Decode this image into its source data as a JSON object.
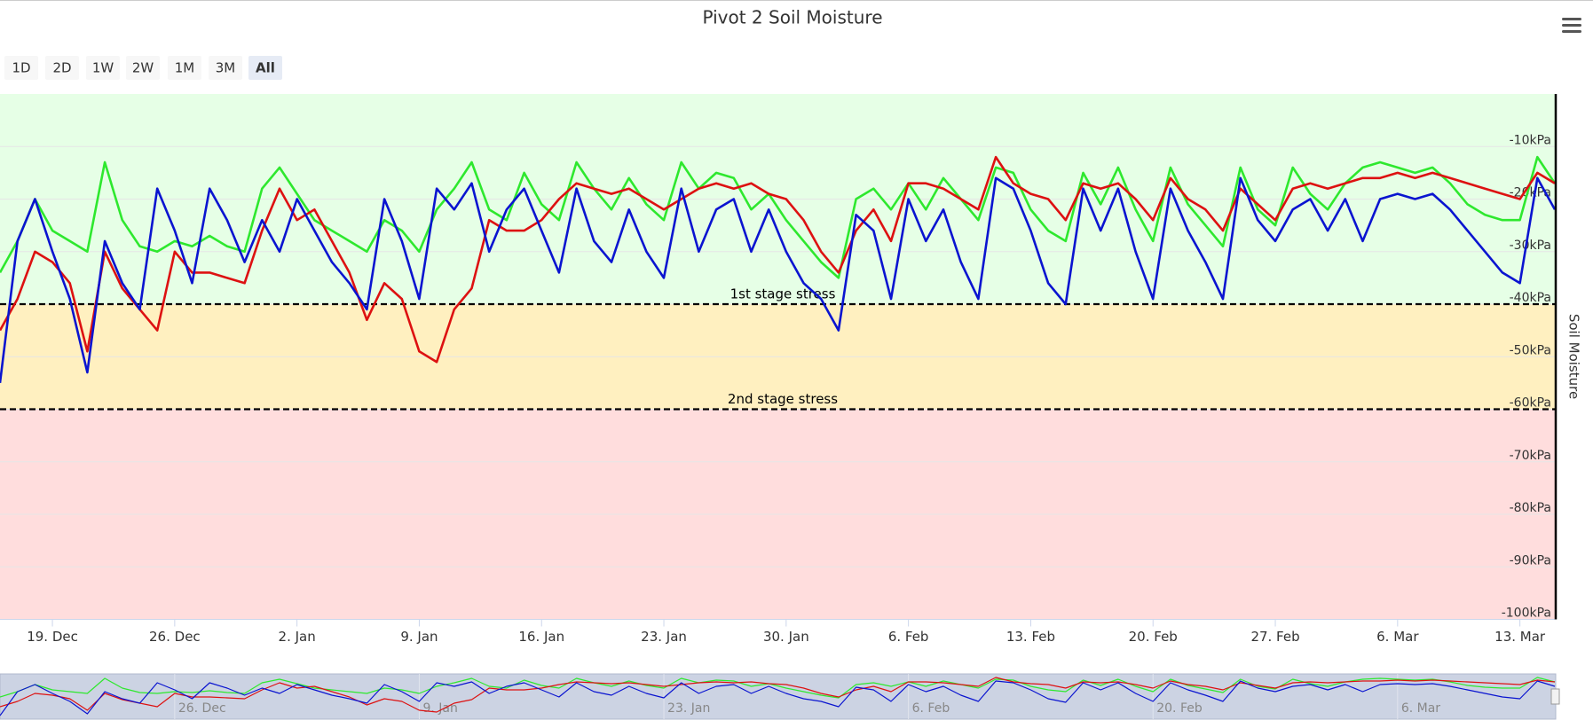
{
  "chart_data": {
    "type": "line",
    "title": "Pivot 2 Soil Moisture",
    "y_axis_label": "Soil Moisture",
    "range_buttons": [
      "1D",
      "2D",
      "1W",
      "2W",
      "1M",
      "3M",
      "All"
    ],
    "selected_button": 6,
    "x": [
      "12-16",
      "12-17",
      "12-18",
      "12-19",
      "12-20",
      "12-21",
      "12-22",
      "12-23",
      "12-24",
      "12-25",
      "12-26",
      "12-27",
      "12-28",
      "12-29",
      "12-30",
      "12-31",
      "01-01",
      "01-02",
      "01-03",
      "01-04",
      "01-05",
      "01-06",
      "01-07",
      "01-08",
      "01-09",
      "01-10",
      "01-11",
      "01-12",
      "01-13",
      "01-14",
      "01-15",
      "01-16",
      "01-17",
      "01-18",
      "01-19",
      "01-20",
      "01-21",
      "01-22",
      "01-23",
      "01-24",
      "01-25",
      "01-26",
      "01-27",
      "01-28",
      "01-29",
      "01-30",
      "01-31",
      "02-01",
      "02-02",
      "02-03",
      "02-04",
      "02-05",
      "02-06",
      "02-07",
      "02-08",
      "02-09",
      "02-10",
      "02-11",
      "02-12",
      "02-13",
      "02-14",
      "02-15",
      "02-16",
      "02-17",
      "02-18",
      "02-19",
      "02-20",
      "02-21",
      "02-22",
      "02-23",
      "02-24",
      "02-25",
      "02-26",
      "02-27",
      "02-28",
      "03-01",
      "03-02",
      "03-03",
      "03-04",
      "03-05",
      "03-06",
      "03-07",
      "03-08",
      "03-09",
      "03-10",
      "03-11",
      "03-12",
      "03-13",
      "03-14",
      "03-15"
    ],
    "series": [
      {
        "color": "#2ee82e",
        "values": [
          -34,
          -28,
          -20,
          -26,
          -28,
          -30,
          -13,
          -24,
          -29,
          -30,
          -28,
          -29,
          -27,
          -29,
          -30,
          -18,
          -14,
          -19,
          -24,
          -26,
          -28,
          -30,
          -24,
          -26,
          -30,
          -22,
          -18,
          -13,
          -22,
          -24,
          -15,
          -21,
          -24,
          -13,
          -18,
          -22,
          -16,
          -21,
          -24,
          -13,
          -18,
          -15,
          -16,
          -22,
          -19,
          -24,
          -28,
          -32,
          -35,
          -20,
          -18,
          -22,
          -17,
          -22,
          -16,
          -20,
          -24,
          -14,
          -15,
          -22,
          -26,
          -28,
          -15,
          -21,
          -14,
          -22,
          -28,
          -14,
          -21,
          -25,
          -29,
          -14,
          -22,
          -25,
          -14,
          -19,
          -22,
          -17,
          -14,
          -13,
          -14,
          -15,
          -14,
          -17,
          -21,
          -23,
          -24,
          -24,
          -12,
          -17
        ]
      },
      {
        "color": "#dd1111",
        "values": [
          -45,
          -39,
          -30,
          -32,
          -36,
          -49,
          -30,
          -37,
          -41,
          -45,
          -30,
          -34,
          -34,
          -35,
          -36,
          -26,
          -18,
          -24,
          -22,
          -28,
          -34,
          -43,
          -36,
          -39,
          -49,
          -51,
          -41,
          -37,
          -24,
          -26,
          -26,
          -24,
          -20,
          -17,
          -18,
          -19,
          -18,
          -20,
          -22,
          -20,
          -18,
          -17,
          -18,
          -17,
          -19,
          -20,
          -24,
          -30,
          -34,
          -26,
          -22,
          -28,
          -17,
          -17,
          -18,
          -20,
          -22,
          -12,
          -17,
          -19,
          -20,
          -24,
          -17,
          -18,
          -17,
          -20,
          -24,
          -16,
          -20,
          -22,
          -26,
          -18,
          -21,
          -24,
          -18,
          -17,
          -18,
          -17,
          -16,
          -16,
          -15,
          -16,
          -15,
          -16,
          -17,
          -18,
          -19,
          -20,
          -15,
          -17
        ]
      },
      {
        "color": "#0a14d0",
        "values": [
          -55,
          -28,
          -20,
          -30,
          -39,
          -53,
          -28,
          -36,
          -41,
          -18,
          -26,
          -36,
          -18,
          -24,
          -32,
          -24,
          -30,
          -20,
          -26,
          -32,
          -36,
          -41,
          -20,
          -28,
          -39,
          -18,
          -22,
          -17,
          -30,
          -22,
          -18,
          -26,
          -34,
          -18,
          -28,
          -32,
          -22,
          -30,
          -35,
          -18,
          -30,
          -22,
          -20,
          -30,
          -22,
          -30,
          -36,
          -39,
          -45,
          -23,
          -26,
          -39,
          -20,
          -28,
          -22,
          -32,
          -39,
          -16,
          -18,
          -26,
          -36,
          -40,
          -18,
          -26,
          -18,
          -30,
          -39,
          -18,
          -26,
          -32,
          -39,
          -16,
          -24,
          -28,
          -22,
          -20,
          -26,
          -20,
          -28,
          -20,
          -19,
          -20,
          -19,
          -22,
          -26,
          -30,
          -34,
          -36,
          -16,
          -22
        ]
      }
    ],
    "xlim": [
      "12-16",
      "03-15"
    ],
    "xticks": [
      {
        "value": "12-19",
        "label": "19. Dec"
      },
      {
        "value": "12-26",
        "label": "26. Dec"
      },
      {
        "value": "01-02",
        "label": "2. Jan"
      },
      {
        "value": "01-09",
        "label": "9. Jan"
      },
      {
        "value": "01-16",
        "label": "16. Jan"
      },
      {
        "value": "01-23",
        "label": "23. Jan"
      },
      {
        "value": "01-30",
        "label": "30. Jan"
      },
      {
        "value": "02-06",
        "label": "6. Feb"
      },
      {
        "value": "02-13",
        "label": "13. Feb"
      },
      {
        "value": "02-20",
        "label": "20. Feb"
      },
      {
        "value": "02-27",
        "label": "27. Feb"
      },
      {
        "value": "03-06",
        "label": "6. Mar"
      },
      {
        "value": "03-13",
        "label": "13. Mar"
      }
    ],
    "ylim": [
      -100,
      0
    ],
    "yticks": [
      {
        "value": -10,
        "label": "-10kPa"
      },
      {
        "value": -20,
        "label": "-20kPa"
      },
      {
        "value": -30,
        "label": "-30kPa"
      },
      {
        "value": -40,
        "label": "-40kPa"
      },
      {
        "value": -50,
        "label": "-50kPa"
      },
      {
        "value": -60,
        "label": "-60kPa"
      },
      {
        "value": -70,
        "label": "-70kPa"
      },
      {
        "value": -80,
        "label": "-80kPa"
      },
      {
        "value": -90,
        "label": "-90kPa"
      },
      {
        "value": -100,
        "label": "-100kPa"
      }
    ],
    "grid": true,
    "plot_bands": [
      {
        "from": -40,
        "to": 0,
        "color": "#e6ffe6"
      },
      {
        "from": -60,
        "to": -40,
        "color": "#fff0c0"
      },
      {
        "from": -100,
        "to": -60,
        "color": "#ffdddd"
      }
    ],
    "plot_lines": [
      {
        "value": -40,
        "label": "1st stage stress"
      },
      {
        "value": -60,
        "label": "2nd stage stress"
      }
    ],
    "navigator": {
      "xticks": [
        {
          "value": "12-26",
          "label": "26. Dec"
        },
        {
          "value": "01-09",
          "label": "9. Jan"
        },
        {
          "value": "01-23",
          "label": "23. Jan"
        },
        {
          "value": "02-06",
          "label": "6. Feb"
        },
        {
          "value": "02-20",
          "label": "20. Feb"
        },
        {
          "value": "03-06",
          "label": "6. Mar"
        }
      ]
    }
  }
}
